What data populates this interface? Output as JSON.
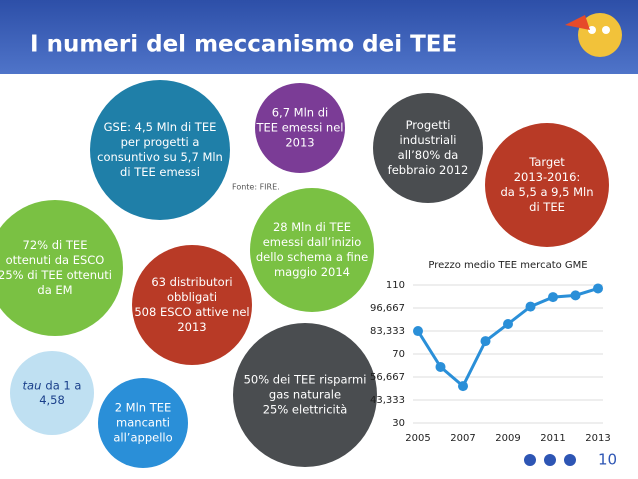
{
  "header": {
    "title": "I numeri del meccanismo dei TEE"
  },
  "bubbles": [
    {
      "lines": [
        "GSE: 4,5 Mln di TEE",
        "per progetti a",
        "consuntivo su 5,7 Mln",
        "di TEE emessi"
      ]
    },
    {
      "lines": [
        "6,7 Mln di",
        "TEE emessi nel",
        "2013"
      ]
    },
    {
      "lines": [
        "Progetti",
        "industriali",
        "all’80% da",
        "febbraio 2012"
      ]
    },
    {
      "lines": [
        "Target",
        "2013-2016:",
        "da 5,5 a 9,5 Mln",
        "di TEE"
      ]
    },
    {
      "lines": [
        "72% di TEE",
        "ottenuti da ESCO",
        "25% di TEE ottenuti",
        "da EM"
      ]
    },
    {
      "lines": [
        "28 Mln di TEE",
        "emessi dall’inizio",
        "dello schema a fine",
        "maggio 2014"
      ]
    },
    {
      "lines": [
        "63 distributori",
        "obbligati",
        "508 ESCO attive nel",
        "2013"
      ]
    },
    {
      "lines": [
        "50% dei TEE risparmi",
        "gas naturale",
        "25% elettricità"
      ]
    },
    {
      "italic": "tau",
      "lines": [
        "da 1 a",
        "4,58"
      ]
    },
    {
      "lines": [
        "2 Mln TEE",
        "mancanti",
        "all’appello"
      ]
    }
  ],
  "source": "Fonte: FIRE.",
  "chart_data": {
    "type": "line",
    "title": "Prezzo medio TEE mercato GME",
    "x": [
      2005,
      2006,
      2007,
      2008,
      2009,
      2010,
      2011,
      2012,
      2013
    ],
    "series": [
      {
        "name": "Prezzo medio TEE",
        "color": "#2a8fd8",
        "values": [
          83.3,
          62.5,
          51.4,
          77.5,
          87.4,
          97.5,
          103,
          104,
          108
        ]
      }
    ],
    "xlim": [
      2005,
      2013
    ],
    "xticks": [
      2005,
      2007,
      2009,
      2011,
      2013
    ],
    "ylim": [
      30,
      110
    ],
    "yticks": [
      30,
      {
        "value": 43.333,
        "label": "43,333"
      },
      {
        "value": 56.667,
        "label": "56,667"
      },
      70,
      {
        "value": 83.333,
        "label": "83,333"
      },
      {
        "value": 96.667,
        "label": "96,667"
      },
      110
    ],
    "grid": true
  },
  "page_number": "10"
}
